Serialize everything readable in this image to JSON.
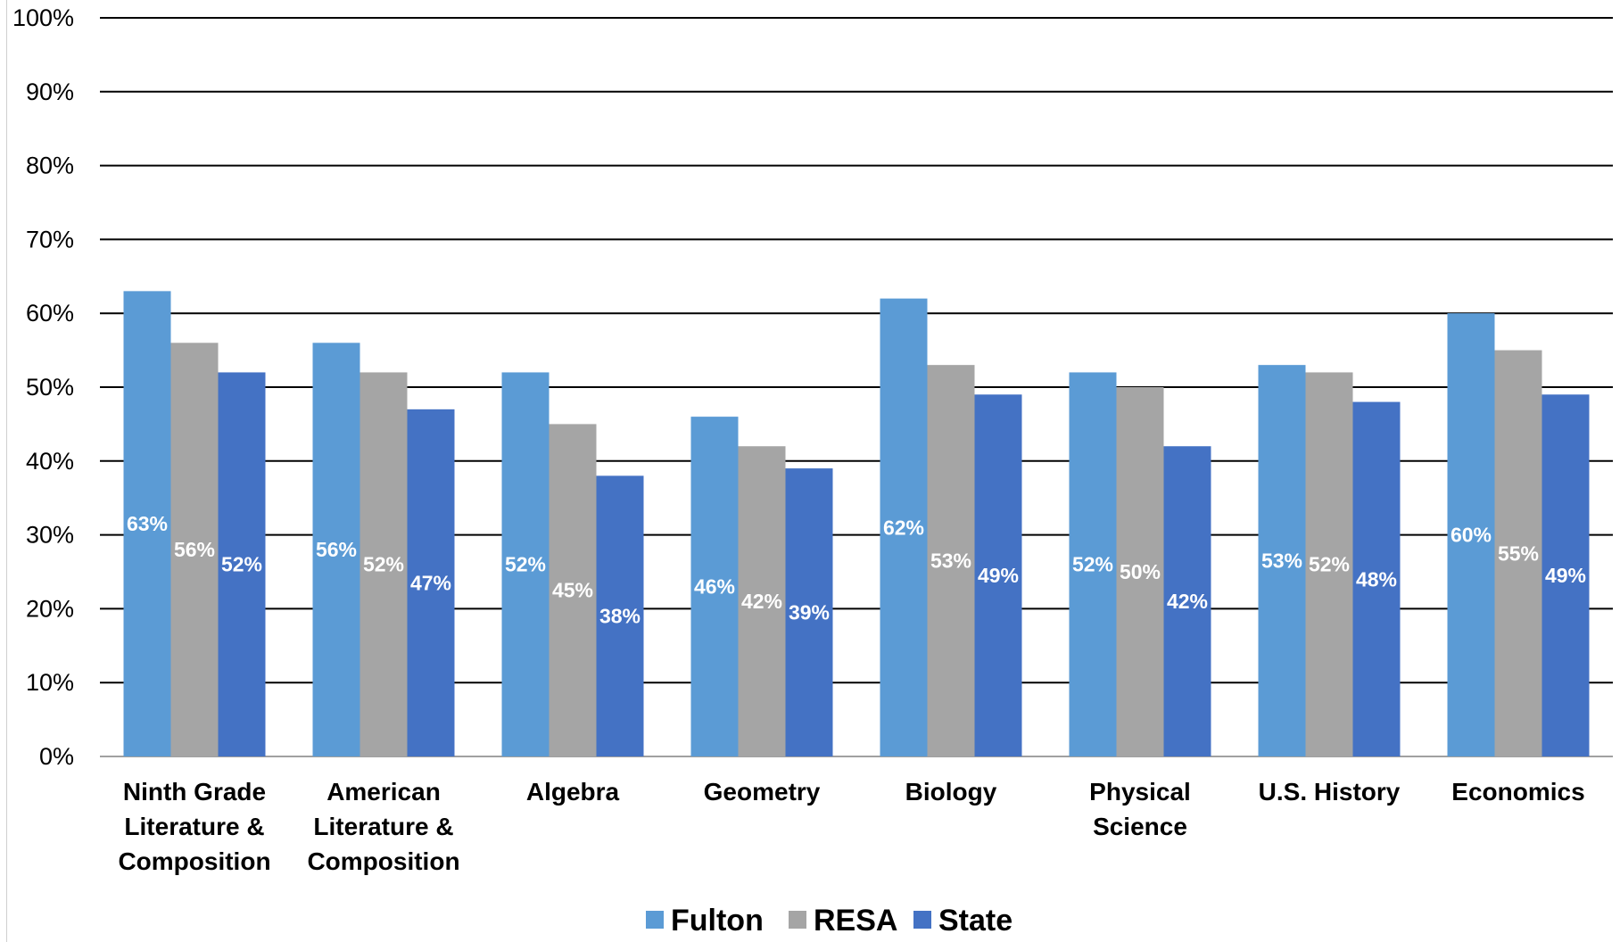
{
  "chart_data": {
    "type": "bar",
    "title": "",
    "xlabel": "",
    "ylabel": "",
    "ylim": [
      0,
      100
    ],
    "y_tick_labels": [
      "0%",
      "10%",
      "20%",
      "30%",
      "40%",
      "50%",
      "60%",
      "70%",
      "80%",
      "90%",
      "100%"
    ],
    "grid": true,
    "legend_position": "bottom",
    "categories": [
      [
        "Ninth Grade",
        "Literature &",
        "Composition"
      ],
      [
        "American",
        "Literature &",
        "Composition"
      ],
      [
        "Algebra"
      ],
      [
        "Geometry"
      ],
      [
        "Biology"
      ],
      [
        "Physical",
        "Science"
      ],
      [
        "U.S. History"
      ],
      [
        "Economics"
      ]
    ],
    "series": [
      {
        "name": "Fulton",
        "color": "#5b9bd5",
        "values": [
          63,
          56,
          52,
          46,
          62,
          52,
          53,
          60
        ],
        "labels": [
          "63%",
          "56%",
          "52%",
          "46%",
          "62%",
          "52%",
          "53%",
          "60%"
        ]
      },
      {
        "name": "RESA",
        "color": "#a5a5a5",
        "values": [
          56,
          52,
          45,
          42,
          53,
          50,
          52,
          55
        ],
        "labels": [
          "56%",
          "52%",
          "45%",
          "42%",
          "53%",
          "50%",
          "52%",
          "55%"
        ]
      },
      {
        "name": "State",
        "color": "#4472c4",
        "values": [
          52,
          47,
          38,
          39,
          49,
          42,
          48,
          49
        ],
        "labels": [
          "52%",
          "47%",
          "38%",
          "39%",
          "49%",
          "42%",
          "48%",
          "49%"
        ]
      }
    ]
  }
}
